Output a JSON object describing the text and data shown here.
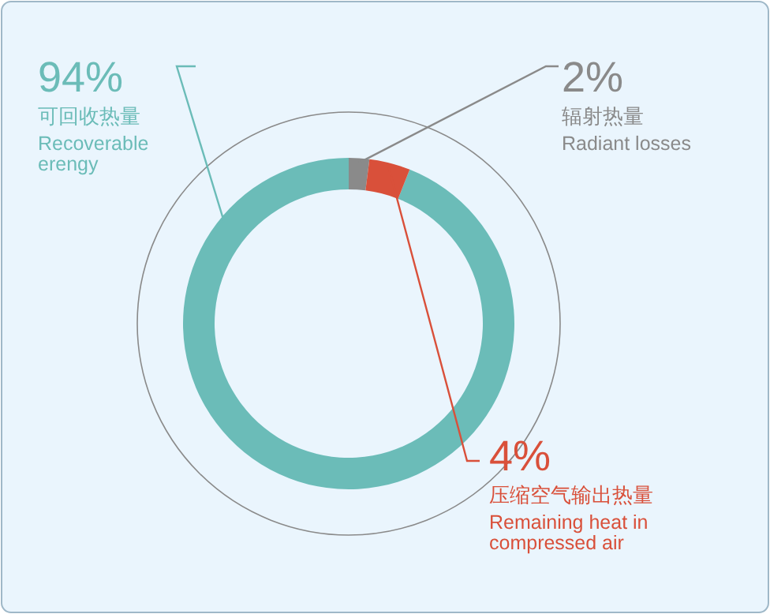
{
  "chart_data": {
    "type": "donut",
    "categories": [
      "可回收热量",
      "辐射热量",
      "压缩空气输出热量"
    ],
    "values": [
      94,
      2,
      4
    ],
    "value_labels": [
      "94%",
      "2%",
      "4%"
    ],
    "colors": [
      "#6bbcb8",
      "#8a8a8a",
      "#d9503a"
    ],
    "annotations": [
      "Recoverable\nerengy",
      "Radiant losses",
      "Remaining heat in\ncompressed air"
    ]
  }
}
